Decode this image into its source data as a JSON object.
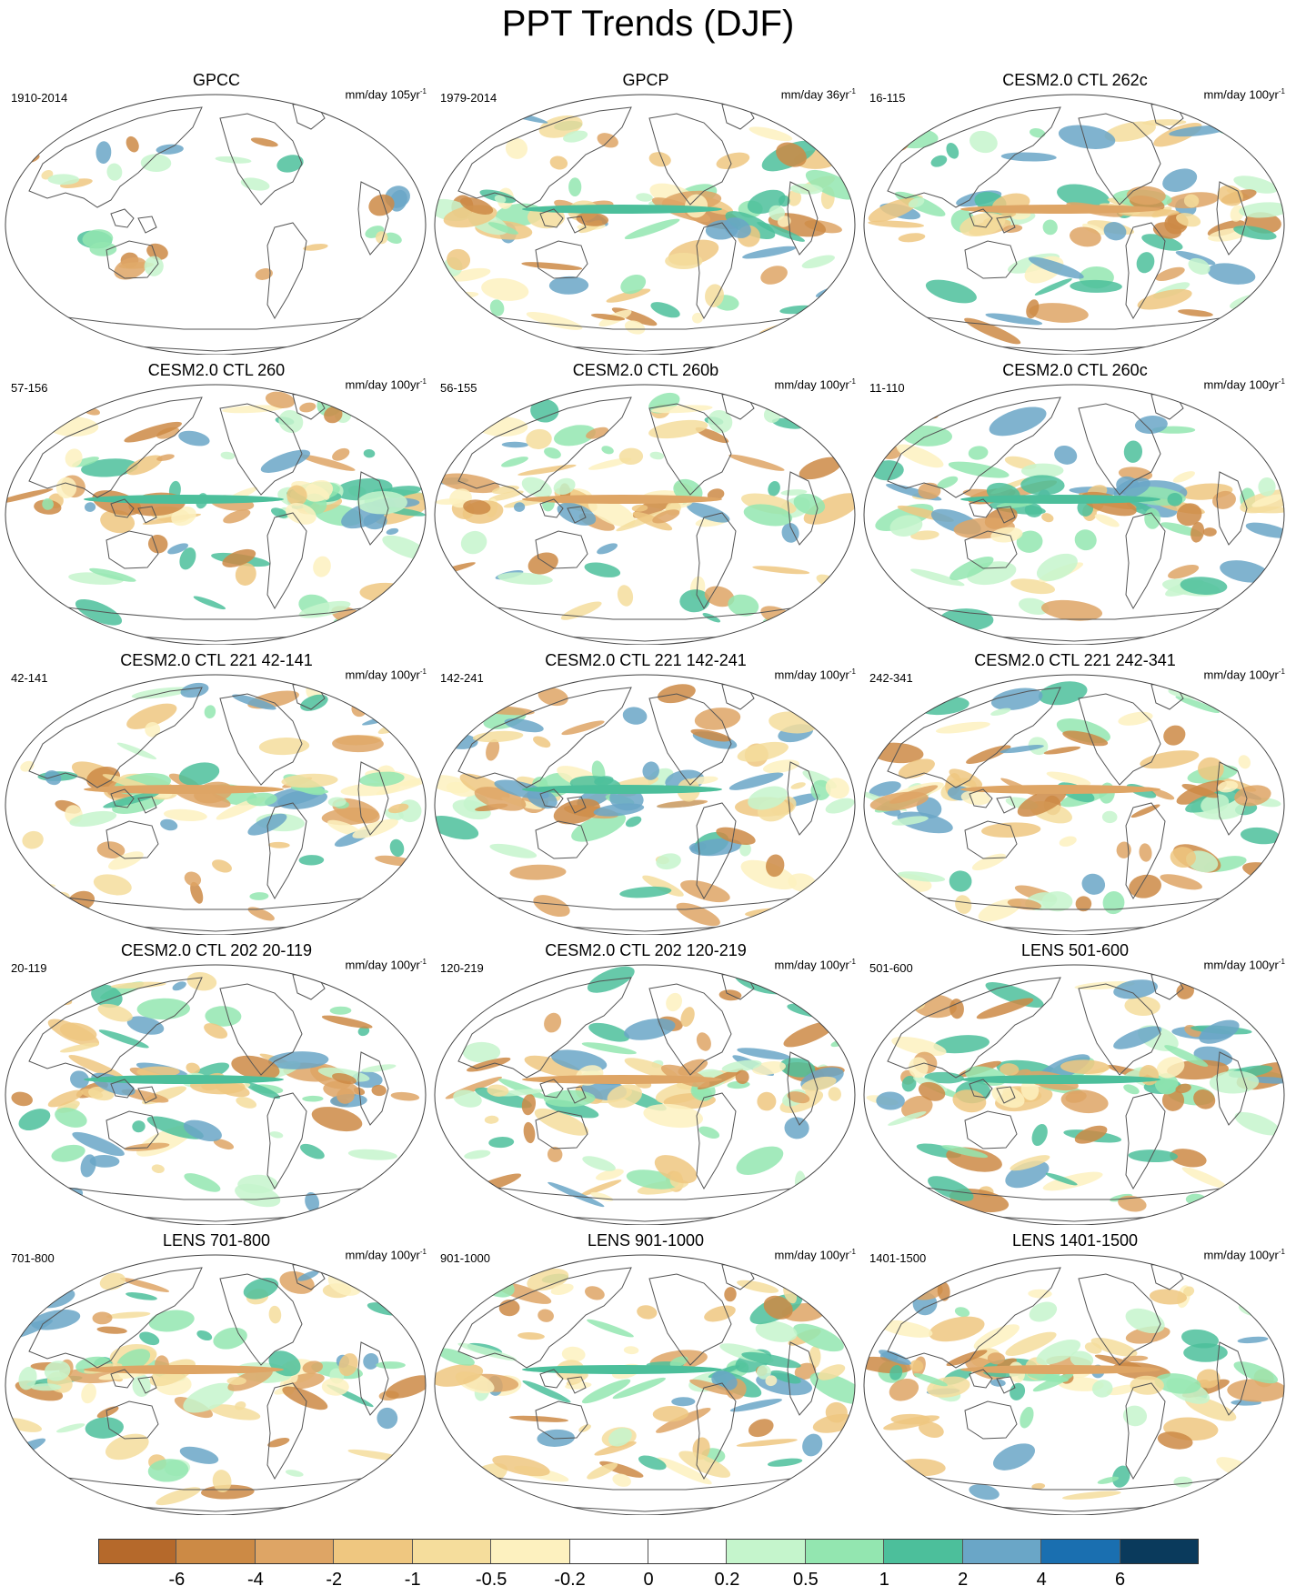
{
  "title": "PPT Trends (DJF)",
  "panels": [
    {
      "title": "GPCC",
      "period": "1910-2014",
      "units": "mm/day 105yr",
      "units_sup": "-1",
      "coverage": "land"
    },
    {
      "title": "GPCP",
      "period": "1979-2014",
      "units": "mm/day 36yr",
      "units_sup": "-1",
      "coverage": "global"
    },
    {
      "title": "CESM2.0 CTL 262c",
      "period": "16-115",
      "units": "mm/day 100yr",
      "units_sup": "-1",
      "coverage": "global"
    },
    {
      "title": "CESM2.0 CTL 260",
      "period": "57-156",
      "units": "mm/day 100yr",
      "units_sup": "-1",
      "coverage": "global"
    },
    {
      "title": "CESM2.0 CTL 260b",
      "period": "56-155",
      "units": "mm/day 100yr",
      "units_sup": "-1",
      "coverage": "global"
    },
    {
      "title": "CESM2.0 CTL 260c",
      "period": "11-110",
      "units": "mm/day 100yr",
      "units_sup": "-1",
      "coverage": "global"
    },
    {
      "title": "CESM2.0 CTL 221 42-141",
      "period": "42-141",
      "units": "mm/day 100yr",
      "units_sup": "-1",
      "coverage": "global"
    },
    {
      "title": "CESM2.0 CTL 221 142-241",
      "period": "142-241",
      "units": "mm/day 100yr",
      "units_sup": "-1",
      "coverage": "global"
    },
    {
      "title": "CESM2.0 CTL 221 242-341",
      "period": "242-341",
      "units": "mm/day 100yr",
      "units_sup": "-1",
      "coverage": "global"
    },
    {
      "title": "CESM2.0 CTL 202 20-119",
      "period": "20-119",
      "units": "mm/day 100yr",
      "units_sup": "-1",
      "coverage": "global"
    },
    {
      "title": "CESM2.0 CTL 202 120-219",
      "period": "120-219",
      "units": "mm/day 100yr",
      "units_sup": "-1",
      "coverage": "global"
    },
    {
      "title": "LENS 501-600",
      "period": "501-600",
      "units": "mm/day 100yr",
      "units_sup": "-1",
      "coverage": "global"
    },
    {
      "title": "LENS 701-800",
      "period": "701-800",
      "units": "mm/day 100yr",
      "units_sup": "-1",
      "coverage": "global"
    },
    {
      "title": "LENS 901-1000",
      "period": "901-1000",
      "units": "mm/day 100yr",
      "units_sup": "-1",
      "coverage": "global"
    },
    {
      "title": "LENS 1401-1500",
      "period": "1401-1500",
      "units": "mm/day 100yr",
      "units_sup": "-1",
      "coverage": "global"
    }
  ],
  "colorbar": {
    "colors": [
      "#b5692b",
      "#cc8a45",
      "#dea565",
      "#efc780",
      "#f5dd9c",
      "#fdf1bf",
      "#ffffff",
      "#ffffff",
      "#c5f5cc",
      "#93e6b0",
      "#4cbf9b",
      "#6aa6c7",
      "#1a6fb0",
      "#0a3a5c"
    ],
    "labels": [
      "-6",
      "-4",
      "-2",
      "-1",
      "-0.5",
      "-0.2",
      "0",
      "0.2",
      "0.5",
      "1",
      "2",
      "4",
      "6"
    ]
  }
}
